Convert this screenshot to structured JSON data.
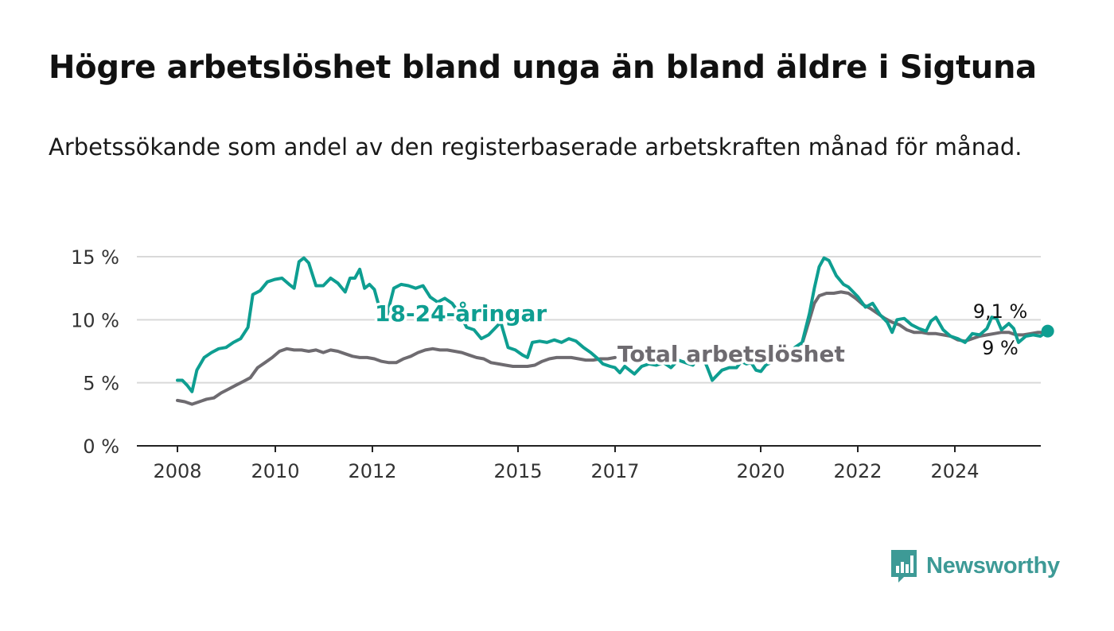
{
  "title": "Högre arbetslöshet bland unga än bland äldre i Sigtuna",
  "subtitle": "Arbetssökande som andel av den registerbaserade arbetskraften månad för månad.",
  "brand": {
    "name": "Newsworthy",
    "color": "#3d9a96",
    "icon": "newsworthy-logo-icon"
  },
  "chart_data": {
    "type": "line",
    "x_tick_labels": [
      "2008",
      "2010",
      "2012",
      "2015",
      "2017",
      "2020",
      "2022",
      "2024"
    ],
    "y_tick_values": [
      0,
      5,
      10,
      15
    ],
    "y_tick_labels": [
      "0 %",
      "5 %",
      "10 %",
      "15 %"
    ],
    "ylim": [
      0,
      15
    ],
    "grid": true,
    "series": [
      {
        "name": "18-24-åringar",
        "color": "#0e9e91",
        "end_label": "9,1 %",
        "points": [
          [
            2008.0,
            5.2
          ],
          [
            2008.1,
            5.2
          ],
          [
            2008.2,
            4.8
          ],
          [
            2008.3,
            4.3
          ],
          [
            2008.4,
            6.0
          ],
          [
            2008.55,
            7.0
          ],
          [
            2008.7,
            7.4
          ],
          [
            2008.85,
            7.7
          ],
          [
            2009.0,
            7.8
          ],
          [
            2009.15,
            8.2
          ],
          [
            2009.3,
            8.5
          ],
          [
            2009.45,
            9.4
          ],
          [
            2009.55,
            12.0
          ],
          [
            2009.7,
            12.3
          ],
          [
            2009.85,
            13.0
          ],
          [
            2010.0,
            13.2
          ],
          [
            2010.15,
            13.3
          ],
          [
            2010.3,
            12.8
          ],
          [
            2010.4,
            12.5
          ],
          [
            2010.5,
            14.6
          ],
          [
            2010.6,
            14.9
          ],
          [
            2010.7,
            14.5
          ],
          [
            2010.85,
            12.7
          ],
          [
            2011.0,
            12.7
          ],
          [
            2011.15,
            13.3
          ],
          [
            2011.3,
            12.9
          ],
          [
            2011.45,
            12.2
          ],
          [
            2011.55,
            13.3
          ],
          [
            2011.65,
            13.3
          ],
          [
            2011.75,
            14.0
          ],
          [
            2011.85,
            12.5
          ],
          [
            2011.95,
            12.8
          ],
          [
            2012.05,
            12.4
          ],
          [
            2012.15,
            11.0
          ],
          [
            2012.3,
            10.2
          ],
          [
            2012.45,
            12.5
          ],
          [
            2012.6,
            12.8
          ],
          [
            2012.75,
            12.7
          ],
          [
            2012.9,
            12.5
          ],
          [
            2013.05,
            12.7
          ],
          [
            2013.2,
            11.8
          ],
          [
            2013.35,
            11.4
          ],
          [
            2013.5,
            11.7
          ],
          [
            2013.65,
            11.3
          ],
          [
            2013.8,
            10.5
          ],
          [
            2013.95,
            9.4
          ],
          [
            2014.1,
            9.2
          ],
          [
            2014.25,
            8.5
          ],
          [
            2014.4,
            8.8
          ],
          [
            2014.55,
            9.4
          ],
          [
            2014.65,
            9.8
          ],
          [
            2014.8,
            7.8
          ],
          [
            2014.95,
            7.6
          ],
          [
            2015.1,
            7.2
          ],
          [
            2015.2,
            7.0
          ],
          [
            2015.3,
            8.2
          ],
          [
            2015.45,
            8.3
          ],
          [
            2015.6,
            8.2
          ],
          [
            2015.75,
            8.4
          ],
          [
            2015.9,
            8.2
          ],
          [
            2016.05,
            8.5
          ],
          [
            2016.2,
            8.3
          ],
          [
            2016.35,
            7.8
          ],
          [
            2016.5,
            7.4
          ],
          [
            2016.65,
            6.9
          ],
          [
            2016.75,
            6.5
          ],
          [
            2016.9,
            6.3
          ],
          [
            2017.0,
            6.2
          ],
          [
            2017.1,
            5.8
          ],
          [
            2017.2,
            6.3
          ],
          [
            2017.3,
            6.0
          ],
          [
            2017.4,
            5.7
          ],
          [
            2017.55,
            6.3
          ],
          [
            2017.7,
            6.5
          ],
          [
            2017.85,
            6.4
          ],
          [
            2018.0,
            6.6
          ],
          [
            2018.15,
            6.2
          ],
          [
            2018.3,
            6.8
          ],
          [
            2018.45,
            6.6
          ],
          [
            2018.6,
            6.4
          ],
          [
            2018.7,
            6.9
          ],
          [
            2018.8,
            7.1
          ],
          [
            2018.9,
            6.2
          ],
          [
            2019.0,
            5.2
          ],
          [
            2019.1,
            5.6
          ],
          [
            2019.2,
            6.0
          ],
          [
            2019.35,
            6.2
          ],
          [
            2019.5,
            6.2
          ],
          [
            2019.6,
            6.7
          ],
          [
            2019.7,
            6.5
          ],
          [
            2019.8,
            6.6
          ],
          [
            2019.9,
            6.0
          ],
          [
            2020.0,
            5.9
          ],
          [
            2020.1,
            6.4
          ],
          [
            2020.2,
            6.6
          ],
          [
            2020.3,
            7.2
          ],
          [
            2020.4,
            7.8
          ],
          [
            2020.5,
            7.7
          ],
          [
            2020.6,
            7.4
          ],
          [
            2020.7,
            7.8
          ],
          [
            2020.85,
            8.2
          ],
          [
            2021.0,
            10.5
          ],
          [
            2021.1,
            12.5
          ],
          [
            2021.2,
            14.2
          ],
          [
            2021.3,
            14.9
          ],
          [
            2021.4,
            14.7
          ],
          [
            2021.55,
            13.5
          ],
          [
            2021.7,
            12.8
          ],
          [
            2021.8,
            12.6
          ],
          [
            2021.9,
            12.2
          ],
          [
            2022.0,
            11.8
          ],
          [
            2022.15,
            11.0
          ],
          [
            2022.3,
            11.3
          ],
          [
            2022.45,
            10.4
          ],
          [
            2022.6,
            9.8
          ],
          [
            2022.7,
            9.0
          ],
          [
            2022.8,
            10.0
          ],
          [
            2022.95,
            10.1
          ],
          [
            2023.1,
            9.6
          ],
          [
            2023.25,
            9.3
          ],
          [
            2023.4,
            9.1
          ],
          [
            2023.5,
            9.9
          ],
          [
            2023.6,
            10.2
          ],
          [
            2023.75,
            9.2
          ],
          [
            2023.9,
            8.7
          ],
          [
            2024.05,
            8.5
          ],
          [
            2024.2,
            8.2
          ],
          [
            2024.35,
            8.9
          ],
          [
            2024.5,
            8.8
          ],
          [
            2024.65,
            9.3
          ],
          [
            2024.75,
            10.2
          ],
          [
            2024.85,
            10.1
          ],
          [
            2024.95,
            9.2
          ],
          [
            2025.1,
            9.7
          ],
          [
            2025.2,
            9.3
          ],
          [
            2025.3,
            8.2
          ],
          [
            2025.45,
            8.7
          ],
          [
            2025.6,
            8.8
          ],
          [
            2025.75,
            8.7
          ],
          [
            2025.9,
            9.1
          ]
        ]
      },
      {
        "name": "Total arbetslöshet",
        "color": "#6e6b70",
        "end_label": "9 %",
        "points": [
          [
            2008.0,
            3.6
          ],
          [
            2008.15,
            3.5
          ],
          [
            2008.3,
            3.3
          ],
          [
            2008.45,
            3.5
          ],
          [
            2008.6,
            3.7
          ],
          [
            2008.75,
            3.8
          ],
          [
            2008.9,
            4.2
          ],
          [
            2009.05,
            4.5
          ],
          [
            2009.2,
            4.8
          ],
          [
            2009.35,
            5.1
          ],
          [
            2009.5,
            5.4
          ],
          [
            2009.65,
            6.2
          ],
          [
            2009.8,
            6.6
          ],
          [
            2009.95,
            7.0
          ],
          [
            2010.1,
            7.5
          ],
          [
            2010.25,
            7.7
          ],
          [
            2010.4,
            7.6
          ],
          [
            2010.55,
            7.6
          ],
          [
            2010.7,
            7.5
          ],
          [
            2010.85,
            7.6
          ],
          [
            2011.0,
            7.4
          ],
          [
            2011.15,
            7.6
          ],
          [
            2011.3,
            7.5
          ],
          [
            2011.45,
            7.3
          ],
          [
            2011.6,
            7.1
          ],
          [
            2011.75,
            7.0
          ],
          [
            2011.9,
            7.0
          ],
          [
            2012.05,
            6.9
          ],
          [
            2012.2,
            6.7
          ],
          [
            2012.35,
            6.6
          ],
          [
            2012.5,
            6.6
          ],
          [
            2012.65,
            6.9
          ],
          [
            2012.8,
            7.1
          ],
          [
            2012.95,
            7.4
          ],
          [
            2013.1,
            7.6
          ],
          [
            2013.25,
            7.7
          ],
          [
            2013.4,
            7.6
          ],
          [
            2013.55,
            7.6
          ],
          [
            2013.7,
            7.5
          ],
          [
            2013.85,
            7.4
          ],
          [
            2014.0,
            7.2
          ],
          [
            2014.15,
            7.0
          ],
          [
            2014.3,
            6.9
          ],
          [
            2014.45,
            6.6
          ],
          [
            2014.6,
            6.5
          ],
          [
            2014.75,
            6.4
          ],
          [
            2014.9,
            6.3
          ],
          [
            2015.05,
            6.3
          ],
          [
            2015.2,
            6.3
          ],
          [
            2015.35,
            6.4
          ],
          [
            2015.5,
            6.7
          ],
          [
            2015.65,
            6.9
          ],
          [
            2015.8,
            7.0
          ],
          [
            2015.95,
            7.0
          ],
          [
            2016.1,
            7.0
          ],
          [
            2016.25,
            6.9
          ],
          [
            2016.4,
            6.8
          ],
          [
            2016.55,
            6.8
          ],
          [
            2016.7,
            6.9
          ],
          [
            2016.85,
            6.9
          ],
          [
            2017.0,
            7.0
          ]
        ],
        "points_after_gap": [
          [
            2020.85,
            8.1
          ],
          [
            2021.0,
            10.0
          ],
          [
            2021.1,
            11.3
          ],
          [
            2021.2,
            11.9
          ],
          [
            2021.35,
            12.1
          ],
          [
            2021.5,
            12.1
          ],
          [
            2021.65,
            12.2
          ],
          [
            2021.8,
            12.1
          ],
          [
            2021.95,
            11.7
          ],
          [
            2022.1,
            11.2
          ],
          [
            2022.25,
            10.9
          ],
          [
            2022.4,
            10.5
          ],
          [
            2022.55,
            10.1
          ],
          [
            2022.7,
            9.8
          ],
          [
            2022.85,
            9.6
          ],
          [
            2023.0,
            9.2
          ],
          [
            2023.15,
            9.0
          ],
          [
            2023.3,
            9.0
          ],
          [
            2023.45,
            8.9
          ],
          [
            2023.6,
            8.9
          ],
          [
            2023.75,
            8.8
          ],
          [
            2023.9,
            8.7
          ],
          [
            2024.05,
            8.4
          ],
          [
            2024.2,
            8.3
          ],
          [
            2024.35,
            8.5
          ],
          [
            2024.5,
            8.7
          ],
          [
            2024.65,
            8.8
          ],
          [
            2024.8,
            8.9
          ],
          [
            2024.95,
            9.0
          ],
          [
            2025.1,
            9.0
          ],
          [
            2025.25,
            8.8
          ],
          [
            2025.4,
            8.8
          ],
          [
            2025.55,
            8.9
          ],
          [
            2025.7,
            9.0
          ],
          [
            2025.9,
            9.0
          ]
        ]
      }
    ]
  }
}
